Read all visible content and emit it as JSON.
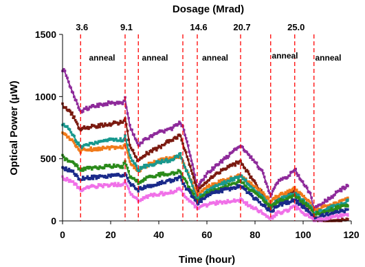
{
  "chart_data": {
    "type": "line",
    "title": "Dosage (Mrad)",
    "xlabel": "Time (hour)",
    "ylabel": "Optical Power (μW)",
    "xlim": [
      0,
      120
    ],
    "ylim": [
      0,
      1500
    ],
    "xticks": [
      0,
      20,
      40,
      60,
      80,
      100,
      120
    ],
    "yticks": [
      0,
      500,
      1000,
      1500
    ],
    "grid": false,
    "dose_markers": [
      {
        "time": 7.5,
        "label": "3.6"
      },
      {
        "time": 26,
        "label": "9.1"
      },
      {
        "time": 31.5,
        "label": ""
      },
      {
        "time": 50,
        "label": ""
      },
      {
        "time": 56,
        "label": "14.6"
      },
      {
        "time": 74,
        "label": "20.7"
      },
      {
        "time": 86.5,
        "label": ""
      },
      {
        "time": 96.5,
        "label": "25.0"
      },
      {
        "time": 104.5,
        "label": ""
      }
    ],
    "annotations": [
      {
        "text": "anneal",
        "x": 11,
        "y": 1290
      },
      {
        "text": "anneal",
        "x": 33,
        "y": 1290
      },
      {
        "text": "anneal",
        "x": 58,
        "y": 1290
      },
      {
        "text": "anneal",
        "x": 87,
        "y": 1305
      },
      {
        "text": "anneal",
        "x": 105,
        "y": 1290
      }
    ],
    "series": [
      {
        "color": "#8e2a9a",
        "x": [
          0,
          1,
          3,
          7.5,
          9,
          15,
          20,
          25,
          26,
          28,
          31.5,
          34,
          40,
          45,
          49,
          50,
          54,
          56,
          60,
          65,
          70,
          74,
          78,
          83,
          86.5,
          89,
          94,
          96.5,
          99,
          103,
          104.5,
          110,
          115,
          119
        ],
        "y": [
          1220,
          1195,
          1090,
          880,
          900,
          930,
          950,
          945,
          980,
          760,
          600,
          650,
          710,
          740,
          790,
          760,
          460,
          260,
          380,
          460,
          540,
          610,
          520,
          400,
          200,
          310,
          360,
          420,
          330,
          220,
          90,
          170,
          240,
          290
        ]
      },
      {
        "color": "#7a1a10",
        "x": [
          0,
          1,
          4,
          7.5,
          9,
          15,
          20,
          25,
          26,
          28,
          31.5,
          34,
          40,
          45,
          49,
          50,
          54,
          56,
          60,
          65,
          70,
          74,
          78,
          83,
          86.5,
          89,
          94,
          96.5,
          99,
          103,
          104.5,
          108,
          114,
          119
        ],
        "y": [
          930,
          910,
          860,
          720,
          750,
          765,
          780,
          795,
          830,
          600,
          480,
          530,
          590,
          650,
          690,
          620,
          380,
          240,
          320,
          390,
          440,
          480,
          360,
          220,
          90,
          170,
          210,
          240,
          150,
          60,
          20,
          0,
          0,
          10
        ]
      },
      {
        "color": "#f07a1a",
        "x": [
          0,
          2,
          4,
          7.5,
          9,
          15,
          20,
          25,
          26,
          28,
          31.5,
          34,
          40,
          45,
          49,
          50,
          54,
          56,
          60,
          65,
          70,
          74,
          78,
          83,
          86.5,
          89,
          94,
          96.5,
          99,
          103,
          104.5,
          110,
          115,
          119
        ],
        "y": [
          700,
          680,
          650,
          560,
          575,
          580,
          590,
          590,
          620,
          470,
          400,
          440,
          480,
          510,
          520,
          480,
          300,
          200,
          270,
          310,
          340,
          370,
          300,
          230,
          150,
          200,
          230,
          260,
          210,
          150,
          80,
          120,
          150,
          180
        ]
      },
      {
        "color": "#18988e",
        "x": [
          0,
          2,
          4,
          7.5,
          9,
          15,
          20,
          25,
          26,
          28,
          31.5,
          34,
          40,
          45,
          49,
          50,
          54,
          56,
          60,
          65,
          70,
          74,
          78,
          83,
          86.5,
          89,
          94,
          96.5,
          99,
          103,
          104.5,
          110,
          115,
          119
        ],
        "y": [
          780,
          750,
          700,
          590,
          610,
          630,
          650,
          650,
          680,
          520,
          410,
          440,
          470,
          490,
          530,
          480,
          280,
          180,
          240,
          290,
          330,
          360,
          280,
          190,
          110,
          160,
          200,
          220,
          180,
          120,
          60,
          100,
          130,
          160
        ]
      },
      {
        "color": "#2a8a1a",
        "x": [
          0,
          1,
          4,
          7.5,
          9,
          15,
          20,
          25,
          26,
          28,
          31.5,
          34,
          40,
          45,
          49,
          50,
          54,
          56,
          60,
          65,
          70,
          74,
          78,
          83,
          86.5,
          89,
          94,
          96.5,
          99,
          103,
          104.5,
          110,
          115,
          119
        ],
        "y": [
          520,
          500,
          470,
          410,
          420,
          430,
          440,
          440,
          470,
          360,
          310,
          340,
          370,
          380,
          400,
          360,
          220,
          160,
          220,
          260,
          290,
          320,
          250,
          180,
          110,
          150,
          180,
          210,
          160,
          110,
          50,
          80,
          110,
          130
        ]
      },
      {
        "color": "#1a2a8a",
        "x": [
          0,
          1,
          4,
          7.5,
          9,
          15,
          20,
          25,
          26,
          28,
          31.5,
          34,
          40,
          45,
          49,
          50,
          54,
          56,
          60,
          65,
          70,
          74,
          78,
          83,
          86.5,
          89,
          94,
          96.5,
          99,
          103,
          104.5,
          110,
          115,
          119
        ],
        "y": [
          440,
          420,
          400,
          330,
          345,
          355,
          360,
          365,
          380,
          300,
          250,
          275,
          300,
          325,
          350,
          300,
          200,
          140,
          200,
          240,
          260,
          280,
          210,
          130,
          70,
          120,
          150,
          170,
          130,
          70,
          20,
          50,
          70,
          90
        ]
      },
      {
        "color": "#f070e8",
        "x": [
          0,
          1,
          4,
          7.5,
          9,
          15,
          20,
          25,
          26,
          28,
          31.5,
          34,
          40,
          45,
          49,
          50,
          54,
          56,
          60,
          65,
          70,
          74,
          78,
          83,
          86.5,
          89,
          94,
          96.5,
          99,
          103,
          104.5,
          110,
          115,
          119
        ],
        "y": [
          350,
          340,
          320,
          250,
          265,
          280,
          290,
          295,
          320,
          230,
          160,
          190,
          215,
          230,
          255,
          220,
          140,
          100,
          130,
          150,
          160,
          170,
          120,
          70,
          20,
          60,
          90,
          120,
          80,
          30,
          0,
          20,
          40,
          60
        ]
      }
    ]
  }
}
